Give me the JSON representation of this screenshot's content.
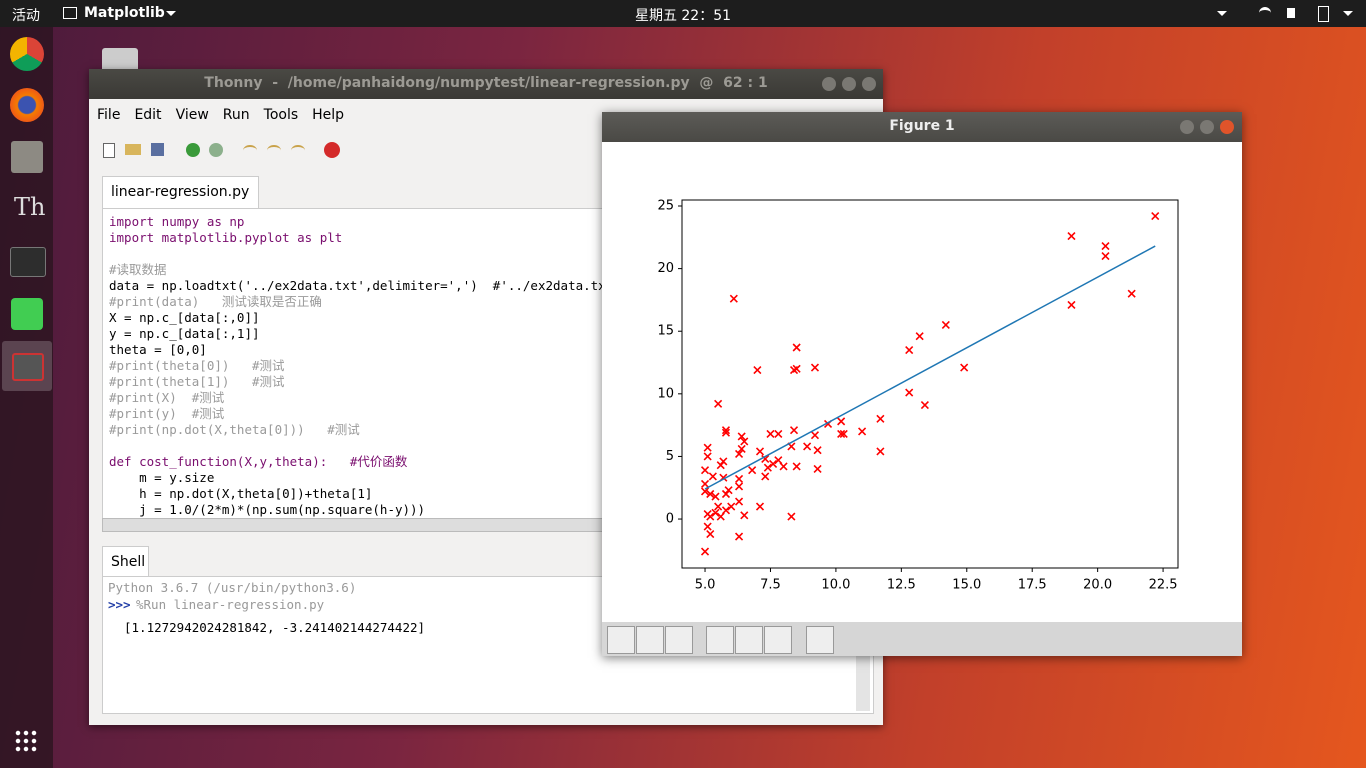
{
  "top_bar": {
    "activities": "活动",
    "app_menu": "Matplotlib",
    "clock": "星期五 22：51"
  },
  "thonny": {
    "title": "Thonny  -  /home/panhaidong/numpytest/linear-regression.py  @  62 : 1",
    "menu": [
      "File",
      "Edit",
      "View",
      "Run",
      "Tools",
      "Help"
    ],
    "tab": "linear-regression.py",
    "code_blocks": [
      [
        "import numpy as np",
        "import matplotlib.pyplot as plt"
      ],
      [
        "#读取数据",
        "data = np.loadtxt('../ex2data.txt',delimiter=',')  #'../ex2data.txt'是",
        "#print(data)   测试读取是否正确",
        "X = np.c_[data[:,0]]",
        "y = np.c_[data[:,1]]",
        "theta = [0,0]",
        "#print(theta[0])   #测试",
        "#print(theta[1])   #测试",
        "#print(X)  #测试",
        "#print(y)  #测试",
        "#print(np.dot(X,theta[0]))   #测试"
      ],
      [
        "def cost_function(X,y,theta):   #代价函数",
        "    m = y.size",
        "    h = np.dot(X,theta[0])+theta[1]",
        "    j = 1.0/(2*m)*(np.sum(np.square(h-y)))"
      ]
    ],
    "shell_tab": "Shell",
    "shell_version": "Python 3.6.7 (/usr/bin/python3.6)",
    "shell_prompt": ">>>",
    "shell_command": "%Run linear-regression.py",
    "shell_output": "[1.1272942024281842, -3.241402144274422]"
  },
  "figure_window": {
    "title": "Figure 1"
  },
  "chart_data": {
    "type": "scatter",
    "xlim": [
      4.12,
      23.07
    ],
    "ylim": [
      -3.91,
      25.48
    ],
    "xticks": [
      {
        "value": 5,
        "label": "5.0"
      },
      7.5,
      {
        "value": 10,
        "label": "10.0"
      },
      12.5,
      {
        "value": 15,
        "label": "15.0"
      },
      17.5,
      {
        "value": 20,
        "label": "20.0"
      },
      22.5
    ],
    "yticks": [
      0,
      5,
      10,
      15,
      20,
      25
    ],
    "series": [
      {
        "kind": "markers",
        "color": "red",
        "x": [
          22.2,
          19.0,
          20.3,
          20.3,
          21.3,
          19.0,
          6.1,
          14.2,
          13.2,
          8.5,
          12.8,
          7.0,
          8.4,
          8.5,
          9.2,
          14.9,
          5.5,
          12.8,
          13.4,
          11.7,
          10.2,
          9.7,
          11.0,
          10.2,
          10.3,
          9.2,
          5.8,
          5.8,
          6.4,
          7.5,
          7.8,
          8.4,
          8.9,
          9.3,
          11.7,
          8.3,
          6.5,
          6.4,
          6.3,
          5.1,
          5.1,
          7.1,
          7.3,
          7.6,
          7.8,
          7.4,
          8.0,
          8.5,
          9.3,
          6.8,
          5.0,
          5.6,
          5.7,
          5.3,
          5.7,
          6.3,
          7.3,
          5.0,
          6.3,
          5.9,
          5.2,
          5.4,
          5.8,
          5.0,
          6.3,
          6.0,
          7.1,
          5.5,
          5.8,
          5.4,
          5.1,
          6.5,
          5.2,
          5.6,
          8.3,
          5.1,
          5.2,
          6.3,
          5.0
        ],
        "values": [
          24.2,
          22.6,
          21.8,
          21.0,
          18.0,
          17.1,
          17.6,
          15.5,
          14.6,
          13.7,
          13.5,
          11.9,
          11.9,
          12.0,
          12.1,
          12.1,
          9.2,
          10.1,
          9.1,
          8.0,
          7.8,
          7.6,
          7.0,
          6.8,
          6.8,
          6.7,
          7.1,
          6.9,
          6.6,
          6.8,
          6.8,
          7.1,
          5.8,
          5.5,
          5.4,
          5.8,
          6.2,
          5.6,
          5.2,
          5.7,
          5.0,
          5.4,
          4.8,
          4.4,
          4.7,
          4.1,
          4.2,
          4.2,
          4.0,
          3.9,
          3.9,
          4.3,
          4.6,
          3.4,
          3.3,
          3.2,
          3.4,
          2.8,
          2.6,
          2.3,
          2.0,
          1.8,
          2.0,
          2.2,
          1.4,
          1.0,
          1.0,
          1.0,
          0.7,
          0.5,
          0.4,
          0.3,
          0.2,
          0.2,
          0.2,
          -0.6,
          -1.2,
          -1.4,
          -2.6
        ]
      },
      {
        "kind": "line",
        "color": "#1f77b4",
        "x": [
          5.0,
          22.2
        ],
        "values": [
          2.4,
          21.8
        ]
      }
    ]
  }
}
